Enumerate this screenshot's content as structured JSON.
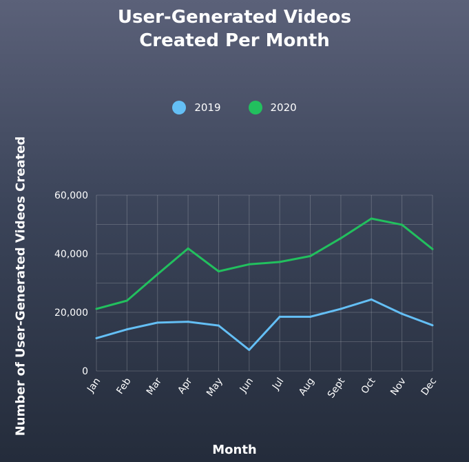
{
  "chart_data": {
    "type": "line",
    "title_lines": [
      "User-Generated Videos",
      "Created Per Month"
    ],
    "xlabel": "Month",
    "ylabel": "Number of User-Generated Videos Created",
    "categories": [
      "Jan",
      "Feb",
      "Mar",
      "Apr",
      "May",
      "Jun",
      "Jul",
      "Aug",
      "Sept",
      "Oct",
      "Nov",
      "Dec"
    ],
    "ylim": [
      0,
      60000
    ],
    "yticks": [
      0,
      20000,
      40000,
      60000
    ],
    "ytick_labels": [
      "0",
      "20,000",
      "40,000",
      "60,000"
    ],
    "grid": true,
    "legend_placement": "top-center",
    "series": [
      {
        "name": "2019",
        "color": "#64bff5",
        "values": [
          11200,
          14200,
          16500,
          16800,
          15500,
          7200,
          18500,
          18500,
          21200,
          24400,
          19500,
          15600
        ]
      },
      {
        "name": "2020",
        "color": "#22c05e",
        "values": [
          21200,
          24000,
          33000,
          41800,
          34000,
          36400,
          37200,
          39200,
          45300,
          52000,
          49900,
          41600
        ]
      }
    ]
  }
}
